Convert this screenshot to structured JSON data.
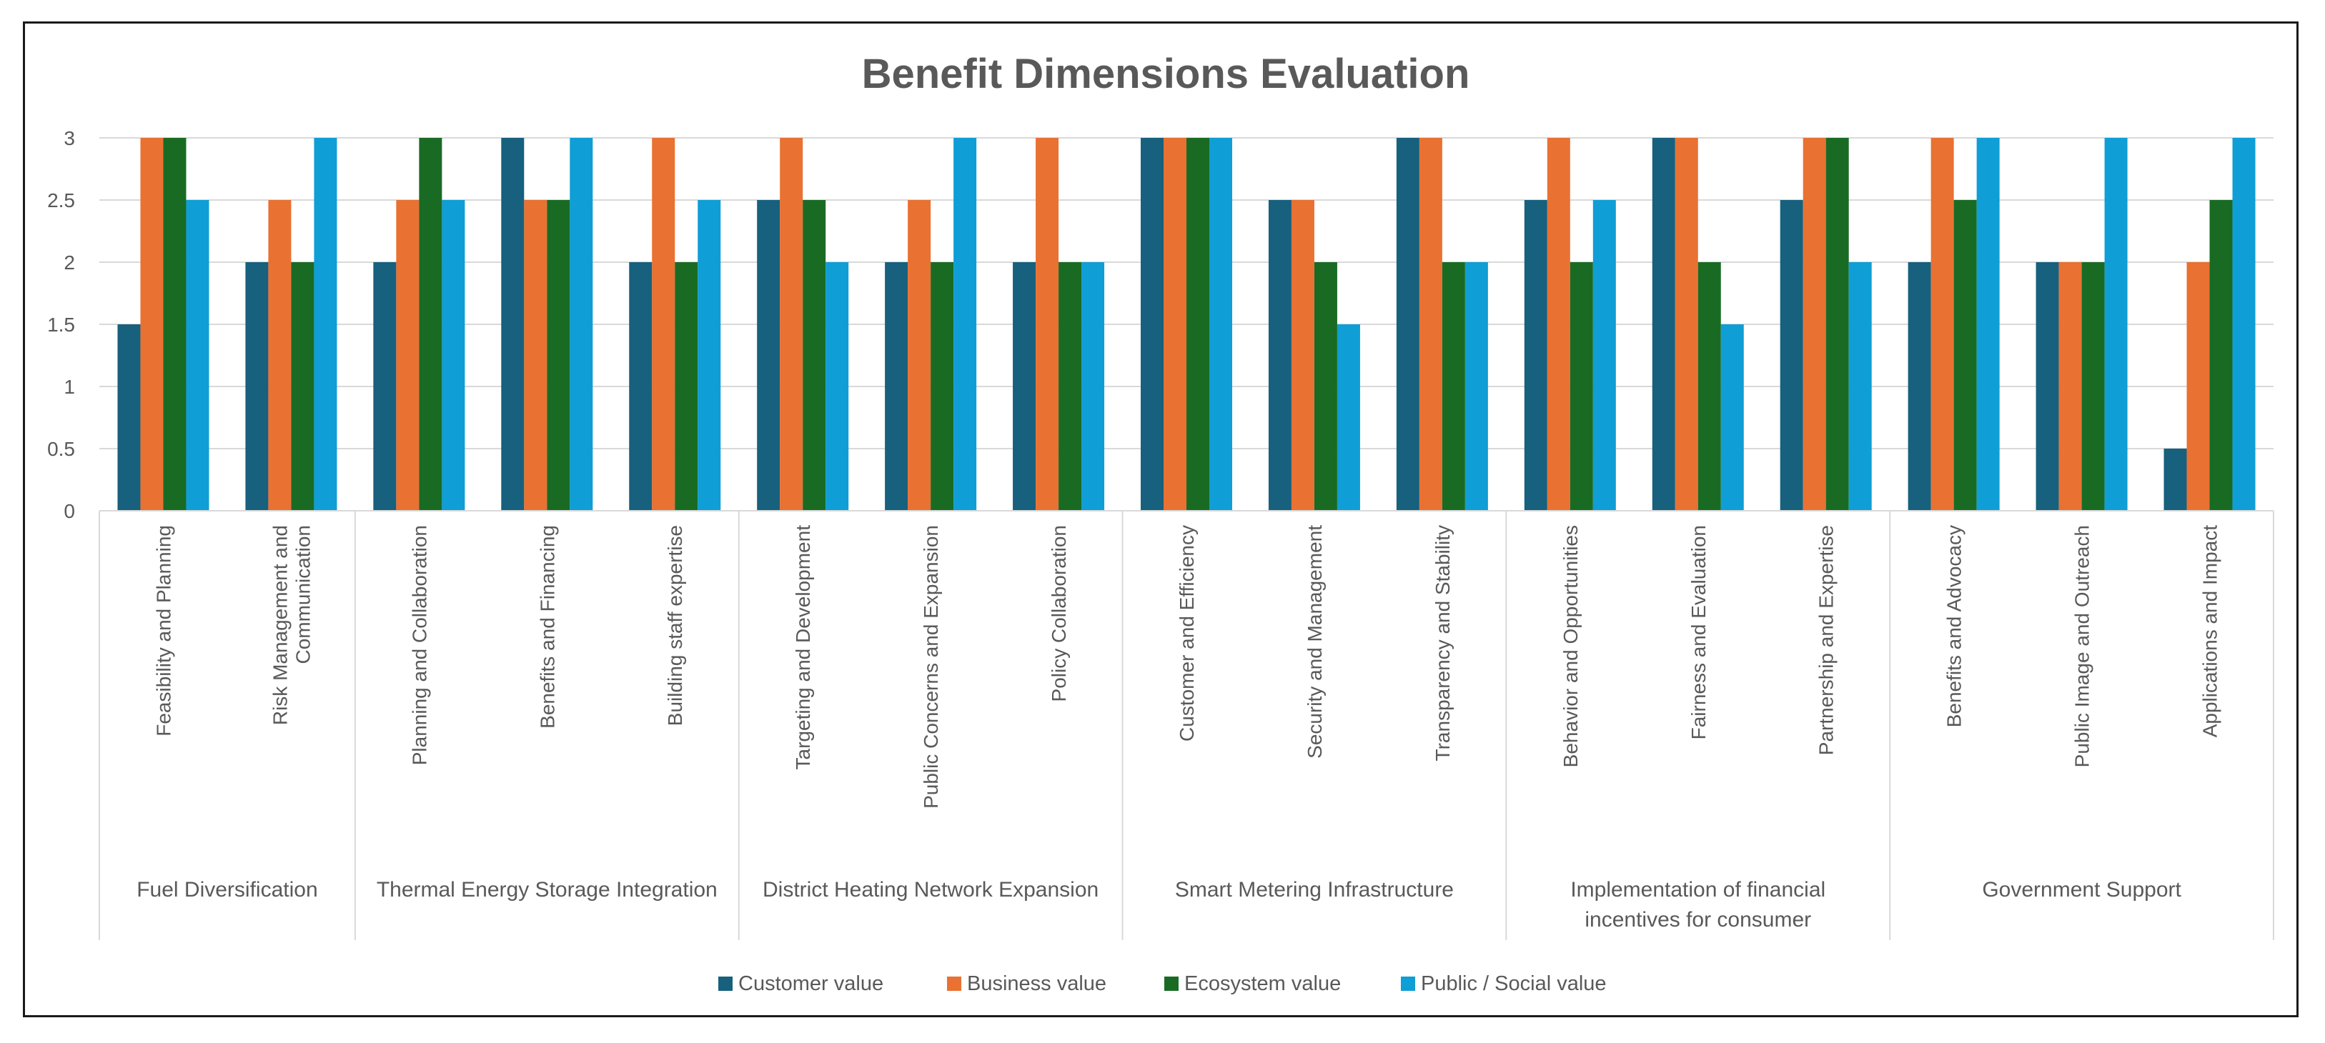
{
  "chart_data": {
    "type": "bar",
    "title": "Benefit Dimensions Evaluation",
    "xlabel": "",
    "ylabel": "",
    "ylim": [
      0,
      3
    ],
    "yticks": [
      "0",
      "0.5",
      "1",
      "1.5",
      "2",
      "2.5",
      "3"
    ],
    "ytick_values": [
      0,
      0.5,
      1,
      1.5,
      2,
      2.5,
      3
    ],
    "grid": true,
    "legend_position": "bottom",
    "groups": [
      {
        "name": [
          "Fuel Diversification"
        ],
        "categories": [
          0,
          1
        ]
      },
      {
        "name": [
          "Thermal Energy Storage Integration"
        ],
        "categories": [
          2,
          3,
          4
        ]
      },
      {
        "name": [
          "District Heating Network Expansion"
        ],
        "categories": [
          5,
          6,
          7
        ]
      },
      {
        "name": [
          "Smart Metering Infrastructure"
        ],
        "categories": [
          8,
          9,
          10
        ]
      },
      {
        "name": [
          "Implementation of financial",
          "incentives for consumer"
        ],
        "categories": [
          11,
          12,
          13
        ]
      },
      {
        "name": [
          "Government Support"
        ],
        "categories": [
          14,
          15,
          16
        ]
      }
    ],
    "categories": [
      [
        "Feasibility and Planning"
      ],
      [
        "Risk Management and",
        "Communication"
      ],
      [
        "Planning and Collaboration"
      ],
      [
        "Benefits and Financing"
      ],
      [
        "Building staff expertise"
      ],
      [
        "Targeting and Development"
      ],
      [
        "Public Concerns and Expansion"
      ],
      [
        "Policy Collaboration"
      ],
      [
        "Customer and Efficiency"
      ],
      [
        "Security and Management"
      ],
      [
        "Transparency and Stability"
      ],
      [
        "Behavior and Opportunities"
      ],
      [
        "Fairness and Evaluation"
      ],
      [
        "Partnership and Expertise"
      ],
      [
        "Benefits and Advocacy"
      ],
      [
        "Public Image and Outreach"
      ],
      [
        "Applications and Impact"
      ]
    ],
    "series": [
      {
        "name": "Customer value",
        "color": "#17607E",
        "values": [
          1.5,
          2,
          2,
          3,
          2,
          2.5,
          2,
          2,
          3,
          2.5,
          3,
          2.5,
          3,
          2.5,
          2,
          2,
          0.5
        ]
      },
      {
        "name": "Business value",
        "color": "#E97132",
        "values": [
          3,
          2.5,
          2.5,
          2.5,
          3,
          3,
          2.5,
          3,
          3,
          2.5,
          3,
          3,
          3,
          3,
          3,
          2,
          2
        ]
      },
      {
        "name": "Ecosystem value",
        "color": "#196B24",
        "values": [
          3,
          2,
          3,
          2.5,
          2,
          2.5,
          2,
          2,
          3,
          2,
          2,
          2,
          2,
          3,
          2.5,
          2,
          2.5
        ]
      },
      {
        "name": "Public / Social value",
        "color": "#0F9ED5",
        "values": [
          2.5,
          3,
          2.5,
          3,
          2.5,
          2,
          3,
          2,
          3,
          1.5,
          2,
          2.5,
          1.5,
          2,
          3,
          3,
          3
        ]
      }
    ]
  }
}
